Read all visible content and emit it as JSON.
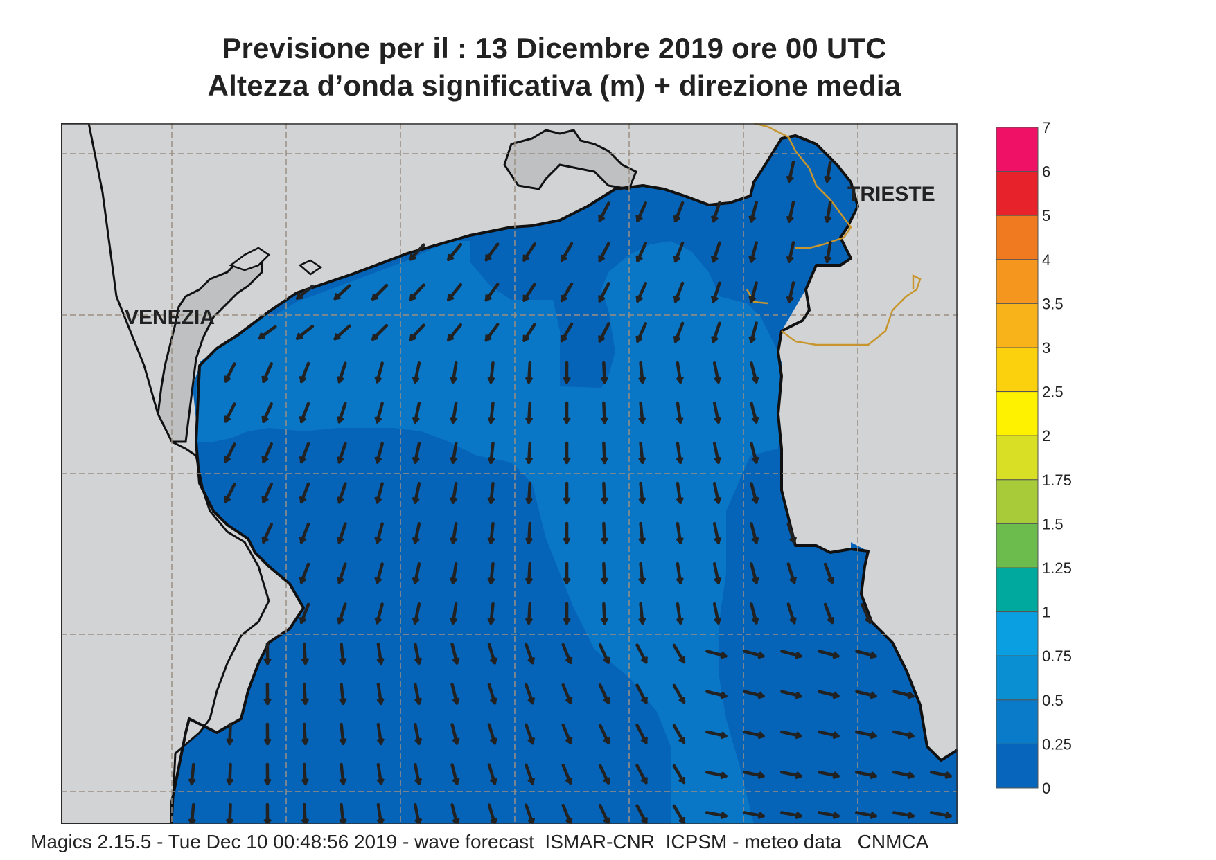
{
  "title": {
    "line1": "Previsione per il  :  13 Dicembre  2019   ore 00 UTC",
    "line2": "Altezza d’onda significativa (m) + direzione media"
  },
  "map": {
    "region": "Northern Adriatic Sea",
    "cities": [
      {
        "name": "VENEZIA"
      },
      {
        "name": "TRIESTE"
      }
    ],
    "colors": {
      "land": "#d2d3d5",
      "sea_0_025": "#0563b8",
      "sea_025_05": "#0a76c6",
      "coast": "#111111",
      "border": "#c8962e",
      "grid": "#9a8f82",
      "arrow": "#222222"
    }
  },
  "legend": {
    "labels": [
      "7",
      "6",
      "5",
      "4",
      "3.5",
      "3",
      "2.5",
      "2",
      "1.75",
      "1.5",
      "1.25",
      "1",
      "0.75",
      "0.5",
      "0.25",
      "0"
    ],
    "colors": [
      "#ee1166",
      "#e8222a",
      "#f07a20",
      "#f5961e",
      "#f8b21a",
      "#fbd10e",
      "#fff200",
      "#d8df25",
      "#a8cb39",
      "#6cbc4d",
      "#00a99d",
      "#0a9fe0",
      "#0b8fd3",
      "#0a7bc8",
      "#0765bb"
    ]
  },
  "footer": "Magics 2.15.5 - Tue Dec 10 00:48:56 2019 - wave forecast  ISMAR-CNR  ICPSM - meteo data   CNMCA"
}
